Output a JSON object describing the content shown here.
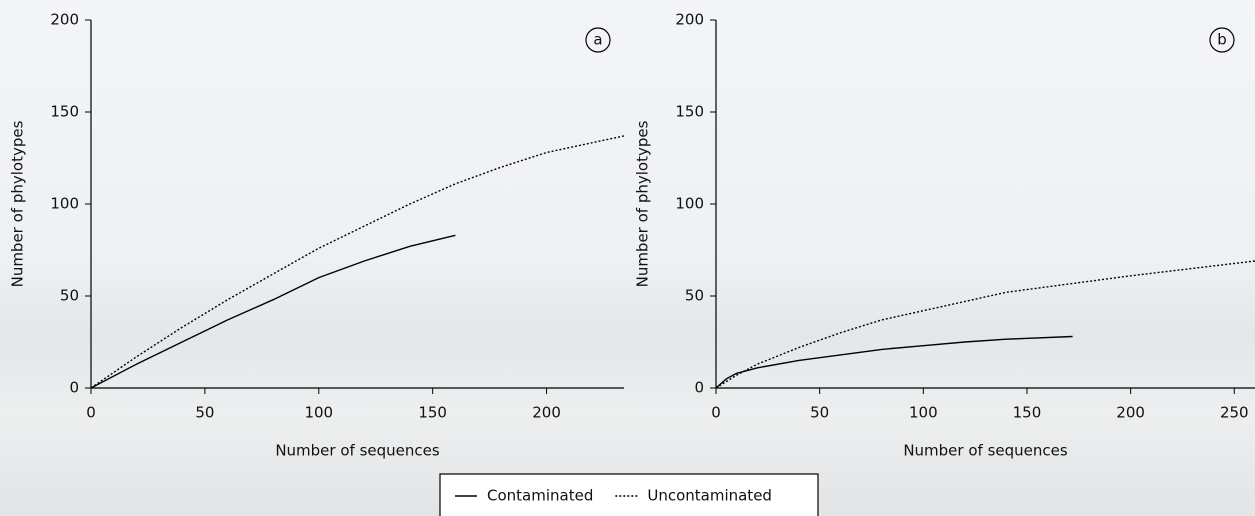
{
  "chart_data": [
    {
      "type": "line",
      "annotation": "a",
      "x_label": "Number of sequences",
      "y_label": "Number of phylotypes",
      "xlim": [
        0,
        234
      ],
      "ylim": [
        0,
        200
      ],
      "xticks": [
        0,
        50,
        100,
        150,
        200
      ],
      "yticks": [
        0,
        50,
        100,
        150,
        200
      ],
      "series": [
        {
          "name": "Contaminated",
          "color": "#000000",
          "line_style": "solid",
          "x": [
            0,
            20,
            40,
            60,
            80,
            100,
            120,
            140,
            160
          ],
          "values": [
            0,
            13,
            25,
            37,
            48,
            60,
            69,
            77,
            83
          ]
        },
        {
          "name": "Uncontaminated",
          "color": "#000000",
          "line_style": "dotted",
          "x": [
            0,
            20,
            40,
            60,
            80,
            100,
            120,
            140,
            160,
            180,
            200,
            234
          ],
          "values": [
            0,
            17,
            33,
            48,
            62,
            76,
            88,
            100,
            111,
            120,
            128,
            137
          ]
        }
      ]
    },
    {
      "type": "line",
      "annotation": "b",
      "x_label": "Number of sequences",
      "y_label": "Number of phylotypes",
      "xlim": [
        0,
        260
      ],
      "ylim": [
        0,
        200
      ],
      "xticks": [
        0,
        50,
        100,
        150,
        200,
        250
      ],
      "yticks": [
        0,
        50,
        100,
        150,
        200
      ],
      "series": [
        {
          "name": "Contaminated",
          "color": "#000000",
          "line_style": "solid",
          "x": [
            0,
            5,
            10,
            20,
            40,
            60,
            80,
            100,
            120,
            140,
            172
          ],
          "values": [
            0,
            5,
            8,
            11,
            15,
            18,
            21,
            23,
            25,
            26.5,
            28
          ]
        },
        {
          "name": "Uncontaminated",
          "color": "#000000",
          "line_style": "dotted",
          "x": [
            0,
            10,
            20,
            40,
            60,
            80,
            100,
            120,
            140,
            160,
            180,
            200,
            230,
            260
          ],
          "values": [
            0,
            7,
            13,
            22,
            30,
            37,
            42,
            47,
            52,
            55,
            58,
            61,
            65,
            69
          ]
        }
      ]
    }
  ]
}
